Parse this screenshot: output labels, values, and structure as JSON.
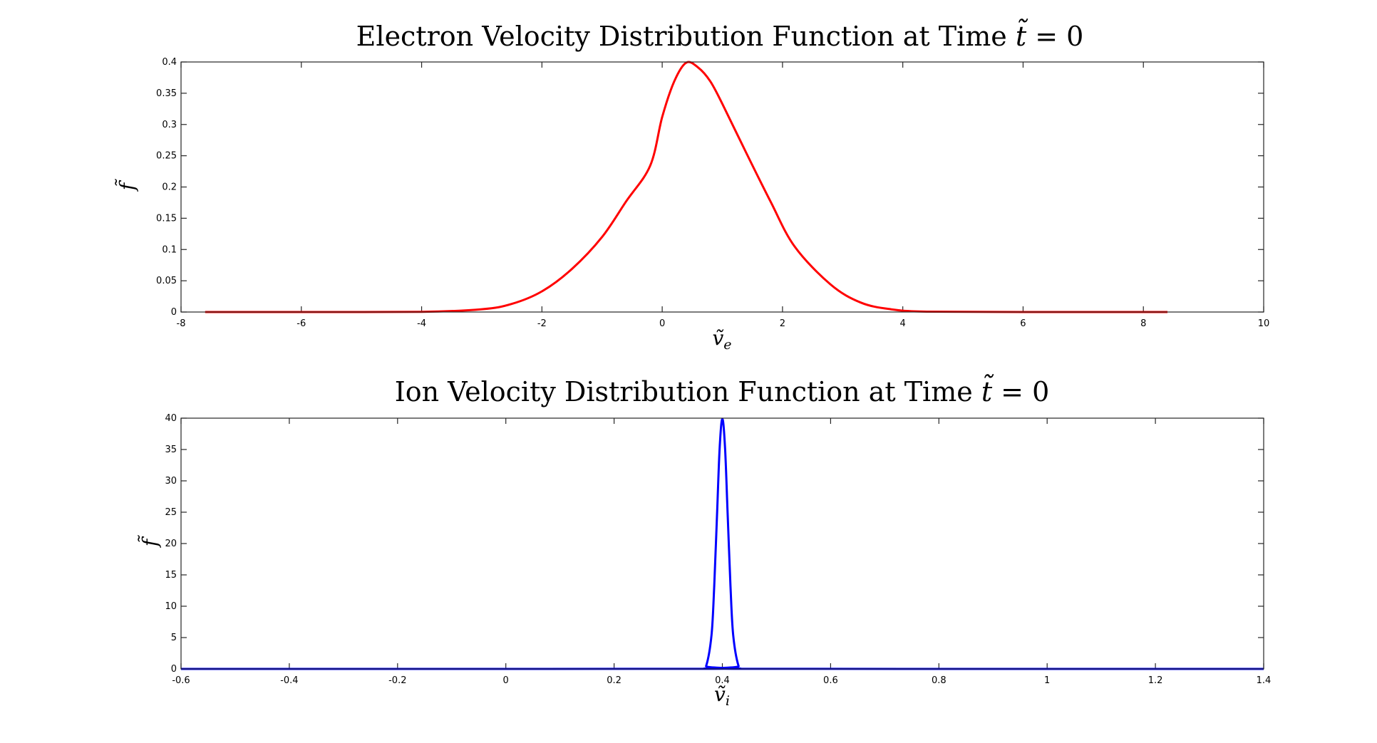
{
  "chart_data": [
    {
      "type": "line",
      "title": "Electron Velocity Distribution Function at Time t̃ = 0",
      "xlabel": "ṽe",
      "ylabel": "f̃",
      "xlim": [
        -8,
        10
      ],
      "ylim": [
        0,
        0.4
      ],
      "xticks": [
        "-8",
        "-6",
        "-4",
        "-2",
        "0",
        "2",
        "4",
        "6",
        "8",
        "10"
      ],
      "yticks": [
        "0",
        "0.05",
        "0.1",
        "0.15",
        "0.2",
        "0.25",
        "0.3",
        "0.35",
        "0.4"
      ],
      "grid": false,
      "series": [
        {
          "color": "#ff0000",
          "x": [
            -7.6,
            -6,
            -4,
            -3,
            -2.5,
            -2,
            -1.5,
            -1,
            -0.6,
            -0.2,
            0,
            0.2,
            0.4,
            0.6,
            0.8,
            1,
            1.4,
            1.8,
            2.2,
            2.8,
            3.3,
            3.8,
            4.4,
            6,
            8.4
          ],
          "y": [
            0,
            0,
            0.0003,
            0.0044,
            0.013,
            0.033,
            0.069,
            0.12,
            0.177,
            0.234,
            0.312,
            0.369,
            0.399,
            0.391,
            0.369,
            0.333,
            0.254,
            0.177,
            0.105,
            0.044,
            0.0151,
            0.0044,
            0.0006,
            0,
            0
          ]
        }
      ]
    },
    {
      "type": "line",
      "title": "Ion Velocity Distribution Function at Time t̃ = 0",
      "xlabel": "ṽi",
      "ylabel": "f̃",
      "xlim": [
        -0.6,
        1.4
      ],
      "ylim": [
        0,
        40
      ],
      "xticks": [
        "-0.6",
        "-0.4",
        "-0.2",
        "0",
        "0.2",
        "0.4",
        "0.6",
        "0.8",
        "1",
        "1.2",
        "1.4"
      ],
      "yticks": [
        "0",
        "5",
        "10",
        "15",
        "20",
        "25",
        "30",
        "35",
        "40"
      ],
      "grid": false,
      "series": [
        {
          "color": "#0000ff",
          "x": [
            -0.6,
            0.36,
            0.37,
            0.38,
            0.385,
            0.39,
            0.395,
            0.4,
            0.405,
            0.41,
            0.415,
            0.42,
            0.43,
            0.44,
            1.4
          ],
          "y": [
            0,
            0.01,
            0.44,
            5.4,
            13.2,
            24.2,
            35.2,
            39.9,
            35.2,
            24.2,
            13.2,
            5.4,
            0.44,
            0.01,
            0
          ]
        }
      ]
    }
  ]
}
